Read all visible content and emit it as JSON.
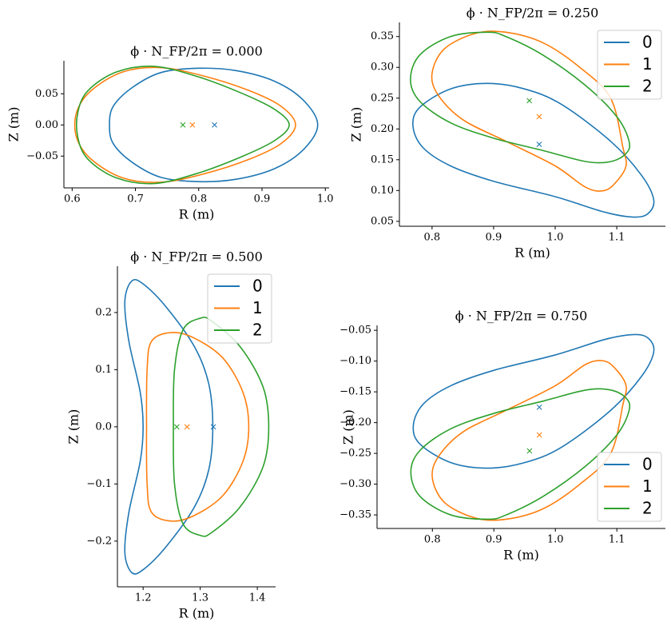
{
  "chart_data": [
    {
      "type": "line",
      "title": "ϕ · N_FP/2π = 0.000",
      "xlabel": "R (m)",
      "ylabel": "Z (m)",
      "xlim": [
        0.587,
        1.006
      ],
      "ylim": [
        -0.101,
        0.103
      ],
      "xticks": [
        0.6,
        0.7,
        0.8,
        0.9,
        {
          "value": 1,
          "label": "1.0"
        }
      ],
      "yticks": [
        {
          "value": -0.05,
          "label": "−0.05"
        },
        {
          "value": 0,
          "label": "0.00"
        },
        0.05
      ],
      "legend": null,
      "series": [
        {
          "name": "0",
          "color": "#1f77b4",
          "marker": [
            0.825,
            0
          ],
          "x": [
            0.988,
            0.965,
            0.92,
            0.86,
            0.8,
            0.74,
            0.695,
            0.665,
            0.659,
            0.665,
            0.695,
            0.74,
            0.8,
            0.86,
            0.92,
            0.965
          ],
          "y": [
            0,
            0.04,
            0.07,
            0.087,
            0.091,
            0.084,
            0.06,
            0.03,
            0,
            -0.03,
            -0.06,
            -0.084,
            -0.091,
            -0.087,
            -0.07,
            -0.04
          ]
        },
        {
          "name": "1",
          "color": "#ff7f0e",
          "marker": [
            0.79,
            0
          ],
          "x": [
            0.953,
            0.93,
            0.88,
            0.81,
            0.74,
            0.68,
            0.63,
            0.607,
            0.607,
            0.63,
            0.68,
            0.74,
            0.81,
            0.88,
            0.93
          ],
          "y": [
            0,
            0.03,
            0.055,
            0.078,
            0.092,
            0.085,
            0.055,
            0.02,
            -0.02,
            -0.055,
            -0.085,
            -0.092,
            -0.078,
            -0.055,
            -0.03
          ]
        },
        {
          "name": "2",
          "color": "#2ca02c",
          "marker": [
            0.775,
            0
          ],
          "x": [
            0.943,
            0.92,
            0.87,
            0.8,
            0.73,
            0.67,
            0.625,
            0.609,
            0.609,
            0.625,
            0.67,
            0.73,
            0.8,
            0.87,
            0.92
          ],
          "y": [
            0,
            0.025,
            0.05,
            0.077,
            0.094,
            0.085,
            0.055,
            0.02,
            -0.02,
            -0.055,
            -0.085,
            -0.094,
            -0.077,
            -0.05,
            -0.025
          ]
        }
      ]
    },
    {
      "type": "line",
      "title": "ϕ · N_FP/2π = 0.250",
      "xlabel": "R (m)",
      "ylabel": "Z (m)",
      "xlim": [
        0.747,
        1.179
      ],
      "ylim": [
        0.042,
        0.373
      ],
      "xticks": [
        0.8,
        0.9,
        {
          "value": 1,
          "label": "1.0"
        },
        1.1
      ],
      "yticks": [
        0.05,
        {
          "value": 0.1,
          "label": "0.10"
        },
        0.15,
        {
          "value": 0.2,
          "label": "0.20"
        },
        0.25,
        {
          "value": 0.3,
          "label": "0.30"
        },
        0.35
      ],
      "legend": "upper right",
      "series": [
        {
          "name": "0",
          "color": "#1f77b4",
          "marker": [
            0.974,
            0.175
          ],
          "x": [
            1.16,
            1.14,
            1.09,
            1.01,
            0.95,
            0.89,
            0.83,
            0.78,
            0.769,
            0.785,
            0.83,
            0.9,
            1.0,
            1.08,
            1.125,
            1.15
          ],
          "y": [
            0.085,
            0.125,
            0.18,
            0.24,
            0.265,
            0.274,
            0.265,
            0.235,
            0.205,
            0.17,
            0.14,
            0.115,
            0.09,
            0.065,
            0.057,
            0.062
          ]
        },
        {
          "name": "1",
          "color": "#ff7f0e",
          "marker": [
            0.974,
            0.22
          ],
          "x": [
            1.11,
            1.09,
            1.04,
            0.98,
            0.92,
            0.87,
            0.82,
            0.8,
            0.81,
            0.85,
            0.92,
            1.0,
            1.05,
            1.08,
            1.1,
            1.115
          ],
          "y": [
            0.17,
            0.25,
            0.3,
            0.34,
            0.357,
            0.355,
            0.33,
            0.29,
            0.255,
            0.215,
            0.18,
            0.14,
            0.105,
            0.1,
            0.115,
            0.14
          ]
        },
        {
          "name": "2",
          "color": "#2ca02c",
          "marker": [
            0.958,
            0.246
          ],
          "x": [
            1.12,
            1.1,
            1.05,
            0.98,
            0.92,
            0.89,
            0.83,
            0.78,
            0.765,
            0.78,
            0.83,
            0.9,
            0.98,
            1.05,
            1.09,
            1.115
          ],
          "y": [
            0.18,
            0.22,
            0.27,
            0.32,
            0.35,
            0.357,
            0.35,
            0.32,
            0.28,
            0.245,
            0.21,
            0.185,
            0.165,
            0.147,
            0.147,
            0.16
          ]
        }
      ]
    },
    {
      "type": "line",
      "title": "ϕ · N_FP/2π = 0.500",
      "xlabel": "R (m)",
      "ylabel": "Z (m)",
      "xlim": [
        1.155,
        1.432
      ],
      "ylim": [
        -0.28,
        0.281
      ],
      "xticks": [
        1.2,
        1.3,
        1.4
      ],
      "yticks": [
        {
          "value": -0.2,
          "label": "−0.2"
        },
        {
          "value": -0.1,
          "label": "−0.1"
        },
        {
          "value": 0,
          "label": "0.0"
        },
        0.1,
        0.2
      ],
      "legend": "upper right",
      "series": [
        {
          "name": "0",
          "color": "#1f77b4",
          "marker": [
            1.323,
            0
          ],
          "x": [
            1.322,
            1.315,
            1.29,
            1.24,
            1.2,
            1.18,
            1.168,
            1.175,
            1.195,
            1.2,
            1.195,
            1.175,
            1.168,
            1.18,
            1.2,
            1.24,
            1.29,
            1.315
          ],
          "y": [
            0,
            -0.075,
            -0.14,
            -0.21,
            -0.25,
            -0.255,
            -0.22,
            -0.15,
            -0.06,
            0,
            0.06,
            0.15,
            0.22,
            0.255,
            0.25,
            0.21,
            0.14,
            0.075
          ]
        },
        {
          "name": "1",
          "color": "#ff7f0e",
          "marker": [
            1.277,
            0
          ],
          "x": [
            1.385,
            1.375,
            1.34,
            1.29,
            1.25,
            1.215,
            1.207,
            1.206,
            1.207,
            1.215,
            1.25,
            1.29,
            1.34,
            1.375
          ],
          "y": [
            0,
            -0.06,
            -0.12,
            -0.155,
            -0.165,
            -0.15,
            -0.1,
            0,
            0.1,
            0.15,
            0.165,
            0.155,
            0.12,
            0.06
          ]
        },
        {
          "name": "2",
          "color": "#2ca02c",
          "marker": [
            1.259,
            0
          ],
          "x": [
            1.42,
            1.41,
            1.37,
            1.32,
            1.3,
            1.27,
            1.255,
            1.253,
            1.255,
            1.27,
            1.3,
            1.32,
            1.37,
            1.41
          ],
          "y": [
            0,
            -0.07,
            -0.14,
            -0.185,
            -0.19,
            -0.17,
            -0.1,
            0,
            0.1,
            0.17,
            0.19,
            0.185,
            0.14,
            0.07
          ]
        }
      ]
    },
    {
      "type": "line",
      "title": "ϕ · N_FP/2π = 0.750",
      "xlabel": "R (m)",
      "ylabel": "Z (m)",
      "xlim": [
        0.71,
        1.179
      ],
      "ylim": [
        -0.372,
        -0.042
      ],
      "xticks": [
        0.8,
        0.9,
        {
          "value": 1,
          "label": "1.0"
        },
        1.1
      ],
      "yticks": [
        {
          "value": -0.35,
          "label": "−0.35"
        },
        {
          "value": -0.3,
          "label": "−0.30"
        },
        {
          "value": -0.25,
          "label": "−0.25"
        },
        {
          "value": -0.2,
          "label": "−0.20"
        },
        {
          "value": -0.15,
          "label": "−0.15"
        },
        {
          "value": -0.1,
          "label": "−0.10"
        },
        {
          "value": -0.05,
          "label": "−0.05"
        }
      ],
      "legend": "lower right",
      "series": [
        {
          "name": "0",
          "color": "#1f77b4",
          "marker": [
            0.974,
            -0.175
          ],
          "x": [
            1.16,
            1.14,
            1.09,
            1.01,
            0.95,
            0.89,
            0.83,
            0.78,
            0.769,
            0.785,
            0.83,
            0.9,
            1.0,
            1.08,
            1.125,
            1.15
          ],
          "y": [
            -0.085,
            -0.125,
            -0.18,
            -0.24,
            -0.265,
            -0.274,
            -0.265,
            -0.235,
            -0.205,
            -0.17,
            -0.14,
            -0.115,
            -0.09,
            -0.065,
            -0.057,
            -0.062
          ]
        },
        {
          "name": "1",
          "color": "#ff7f0e",
          "marker": [
            0.974,
            -0.22
          ],
          "x": [
            1.11,
            1.09,
            1.04,
            0.98,
            0.92,
            0.87,
            0.82,
            0.8,
            0.81,
            0.85,
            0.92,
            1.0,
            1.05,
            1.08,
            1.1,
            1.115
          ],
          "y": [
            -0.17,
            -0.25,
            -0.3,
            -0.34,
            -0.357,
            -0.355,
            -0.33,
            -0.29,
            -0.255,
            -0.215,
            -0.18,
            -0.14,
            -0.105,
            -0.1,
            -0.115,
            -0.14
          ]
        },
        {
          "name": "2",
          "color": "#2ca02c",
          "marker": [
            0.958,
            -0.246
          ],
          "x": [
            1.12,
            1.1,
            1.05,
            0.98,
            0.92,
            0.89,
            0.83,
            0.78,
            0.765,
            0.78,
            0.83,
            0.9,
            0.98,
            1.05,
            1.09,
            1.115
          ],
          "y": [
            -0.18,
            -0.22,
            -0.27,
            -0.32,
            -0.35,
            -0.357,
            -0.35,
            -0.32,
            -0.28,
            -0.245,
            -0.21,
            -0.185,
            -0.165,
            -0.147,
            -0.147,
            -0.16
          ]
        }
      ]
    }
  ]
}
